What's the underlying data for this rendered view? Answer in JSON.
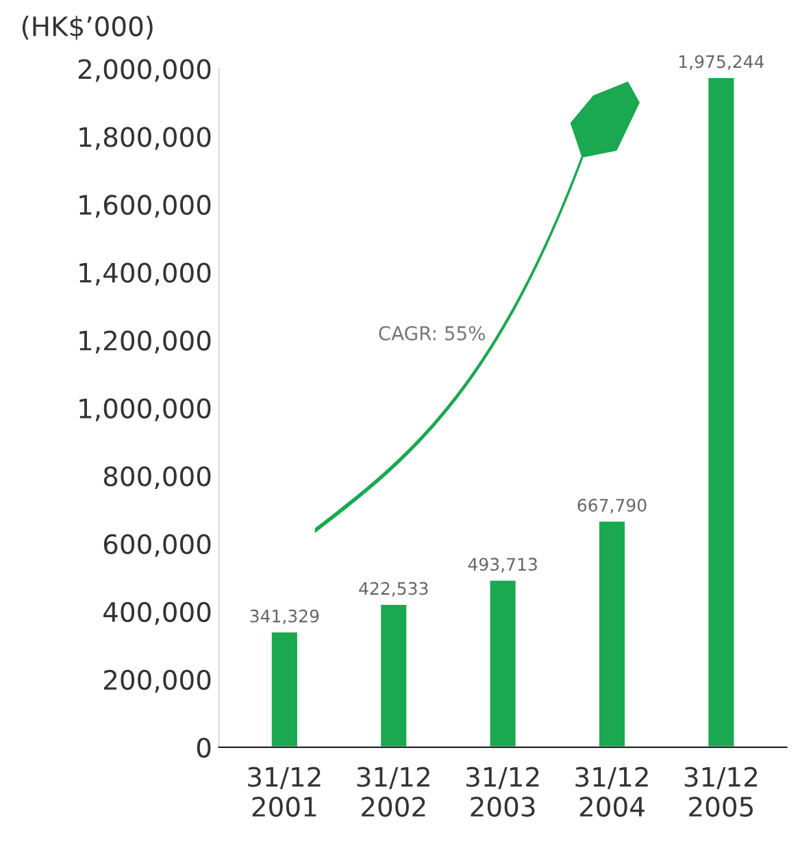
{
  "chart_data": {
    "type": "bar",
    "ylabel": "(HK$’000)",
    "categories": [
      "31/12\n2001",
      "31/12\n2002",
      "31/12\n2003",
      "31/12\n2004",
      "31/12\n2005"
    ],
    "values": [
      341329,
      422533,
      493713,
      667790,
      1975244
    ],
    "color": "#1aa851",
    "ylim": [
      0,
      2000000
    ],
    "yticks": [
      {
        "value": 0,
        "label": "0"
      },
      {
        "value": 200000,
        "label": "200,000"
      },
      {
        "value": 400000,
        "label": "400,000"
      },
      {
        "value": 600000,
        "label": "600,000"
      },
      {
        "value": 800000,
        "label": "800,000"
      },
      {
        "value": 1000000,
        "label": "1,000,000"
      },
      {
        "value": 1200000,
        "label": "1,200,000"
      },
      {
        "value": 1400000,
        "label": "1,400,000"
      },
      {
        "value": 1600000,
        "label": "1,600,000"
      },
      {
        "value": 1800000,
        "label": "1,800,000"
      },
      {
        "value": 2000000,
        "label": "2,000,000"
      }
    ],
    "value_labels": [
      "341,329",
      "422,533",
      "493,713",
      "667,790",
      "1,975,244"
    ],
    "annotations": [
      "CAGR: 55%"
    ]
  }
}
